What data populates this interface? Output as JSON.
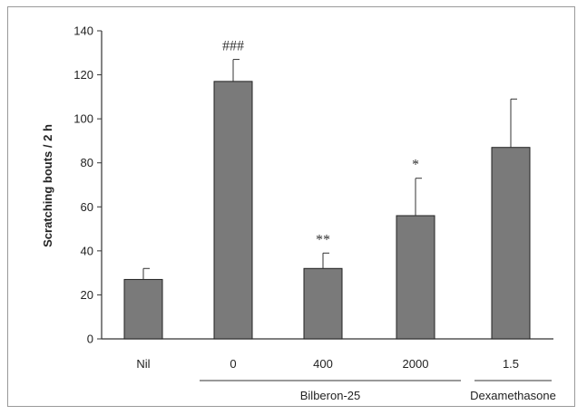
{
  "chart_data": {
    "type": "bar",
    "categories": [
      "Nil",
      "0",
      "400",
      "2000",
      "1.5"
    ],
    "values": [
      27,
      117,
      32,
      56,
      87
    ],
    "errors": [
      5,
      10,
      7,
      17,
      22
    ],
    "annotations": [
      "",
      "###",
      "**",
      "*",
      ""
    ],
    "ylabel": "Scratching bouts / 2 h",
    "xlabel": "",
    "ylim": [
      0,
      140
    ],
    "yticks": [
      0,
      20,
      40,
      60,
      80,
      100,
      120,
      140
    ],
    "groups": [
      {
        "label": "Bilberon-25",
        "from": 1,
        "to": 3
      },
      {
        "label": "Dexamethasone",
        "from": 4,
        "to": 4
      }
    ],
    "bar_color": "#7a7a7a",
    "grid": false,
    "legend": "none"
  }
}
